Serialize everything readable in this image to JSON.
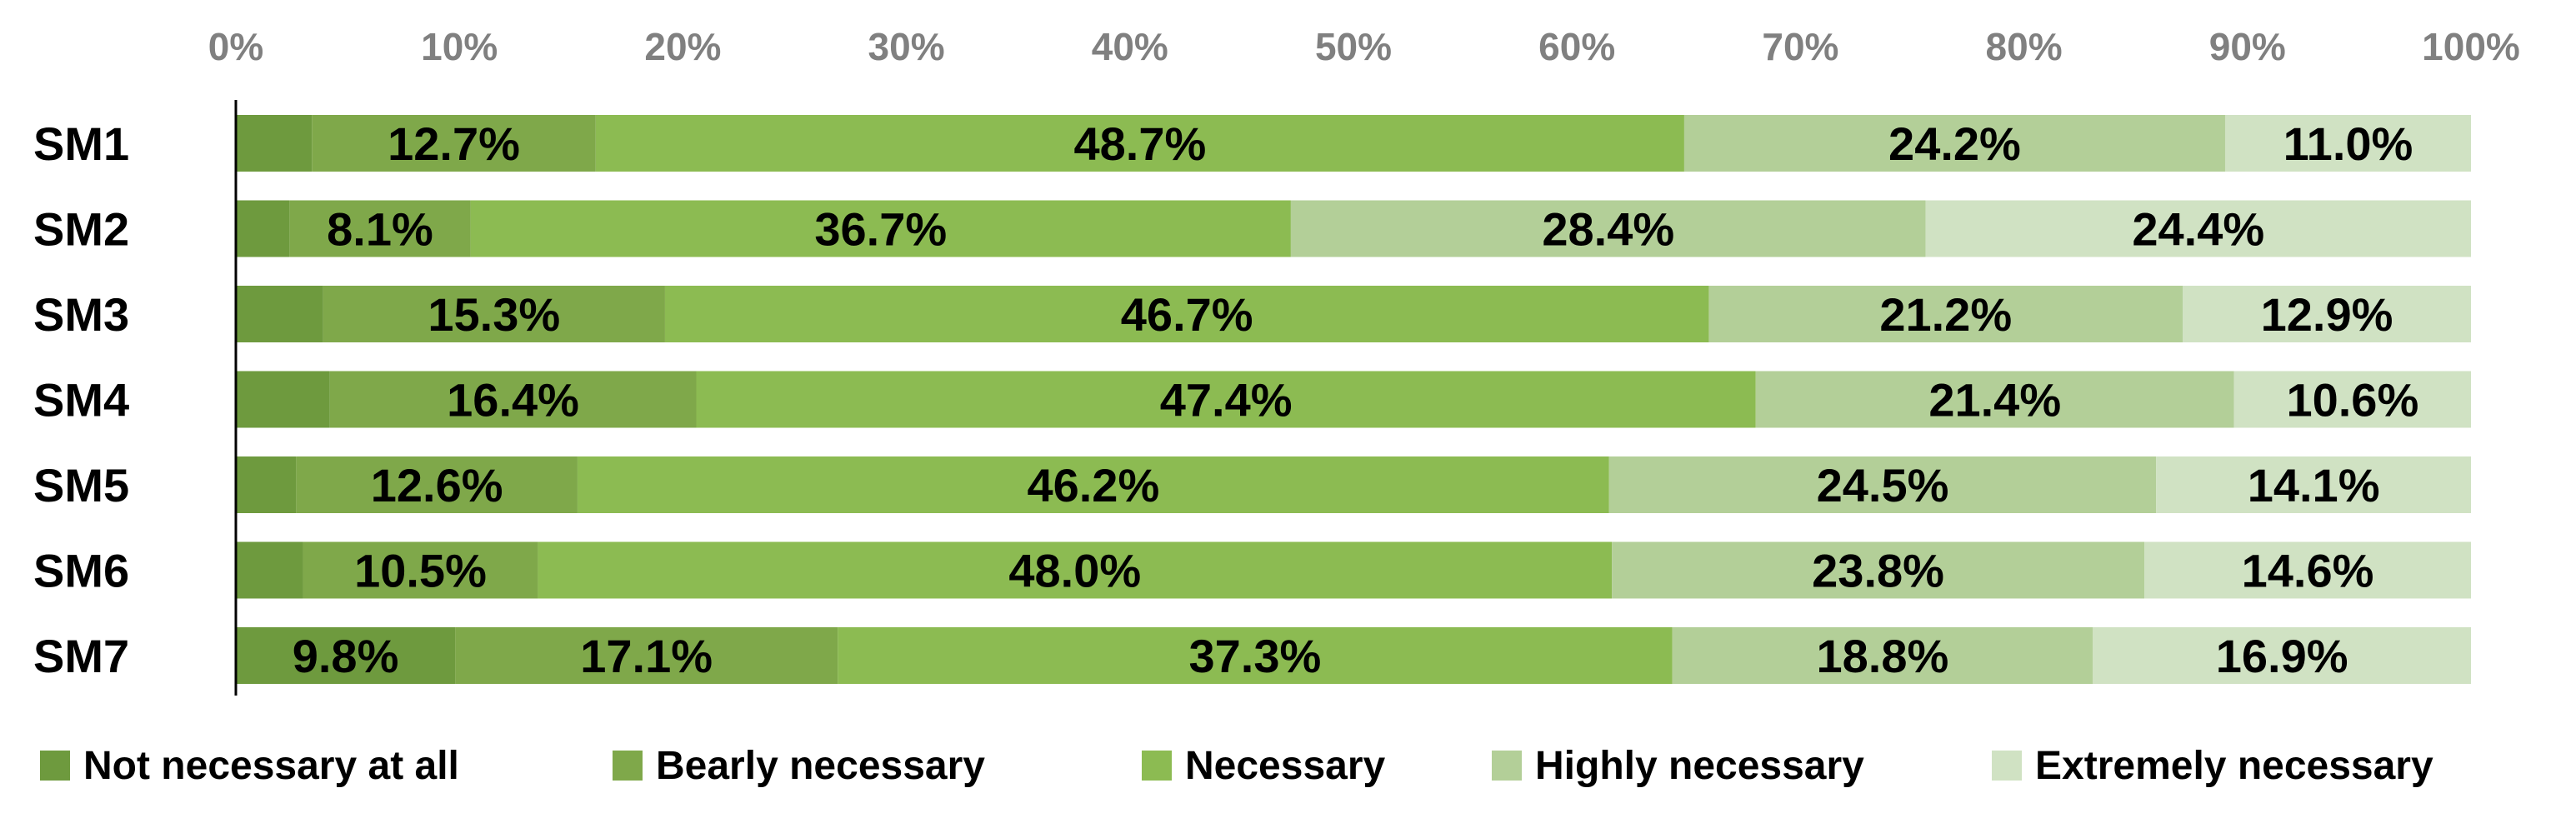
{
  "chart_data": {
    "type": "bar",
    "orientation": "horizontal",
    "stacked": "percent",
    "title": "",
    "xlabel": "",
    "ylabel": "",
    "xlim": [
      0,
      100
    ],
    "x_ticks": [
      "0%",
      "10%",
      "20%",
      "30%",
      "40%",
      "50%",
      "60%",
      "70%",
      "80%",
      "90%",
      "100%"
    ],
    "grid": false,
    "legend_position": "bottom",
    "categories": [
      "SM1",
      "SM2",
      "SM3",
      "SM4",
      "SM5",
      "SM6",
      "SM7"
    ],
    "series": [
      {
        "name": "Not necessary at all",
        "color": "#6e9a3e",
        "values": [
          3.4,
          2.4,
          3.9,
          4.2,
          2.7,
          3.0,
          9.8
        ],
        "labels": [
          "",
          "",
          "",
          "",
          "",
          "",
          "9.8%"
        ]
      },
      {
        "name": "Bearly necessary",
        "color": "#7fa84a",
        "values": [
          12.7,
          8.1,
          15.3,
          16.4,
          12.6,
          10.5,
          17.1
        ],
        "labels": [
          "12.7%",
          "8.1%",
          "15.3%",
          "16.4%",
          "12.6%",
          "10.5%",
          "17.1%"
        ]
      },
      {
        "name": "Necessary",
        "color": "#8cbb52",
        "values": [
          48.7,
          36.7,
          46.7,
          47.4,
          46.2,
          48.0,
          37.3
        ],
        "labels": [
          "48.7%",
          "36.7%",
          "46.7%",
          "47.4%",
          "46.2%",
          "48.0%",
          "37.3%"
        ]
      },
      {
        "name": "Highly necessary",
        "color": "#b3cf98",
        "values": [
          24.2,
          28.4,
          21.2,
          21.4,
          24.5,
          23.8,
          18.8
        ],
        "labels": [
          "24.2%",
          "28.4%",
          "21.2%",
          "21.4%",
          "24.5%",
          "23.8%",
          "18.8%"
        ]
      },
      {
        "name": "Extremely necessary",
        "color": "#d0e2c3",
        "values": [
          11.0,
          24.4,
          12.9,
          10.6,
          14.1,
          14.6,
          16.9
        ],
        "labels": [
          "11.0%",
          "24.4%",
          "12.9%",
          "10.6%",
          "14.1%",
          "14.6%",
          "16.9%"
        ]
      }
    ]
  }
}
